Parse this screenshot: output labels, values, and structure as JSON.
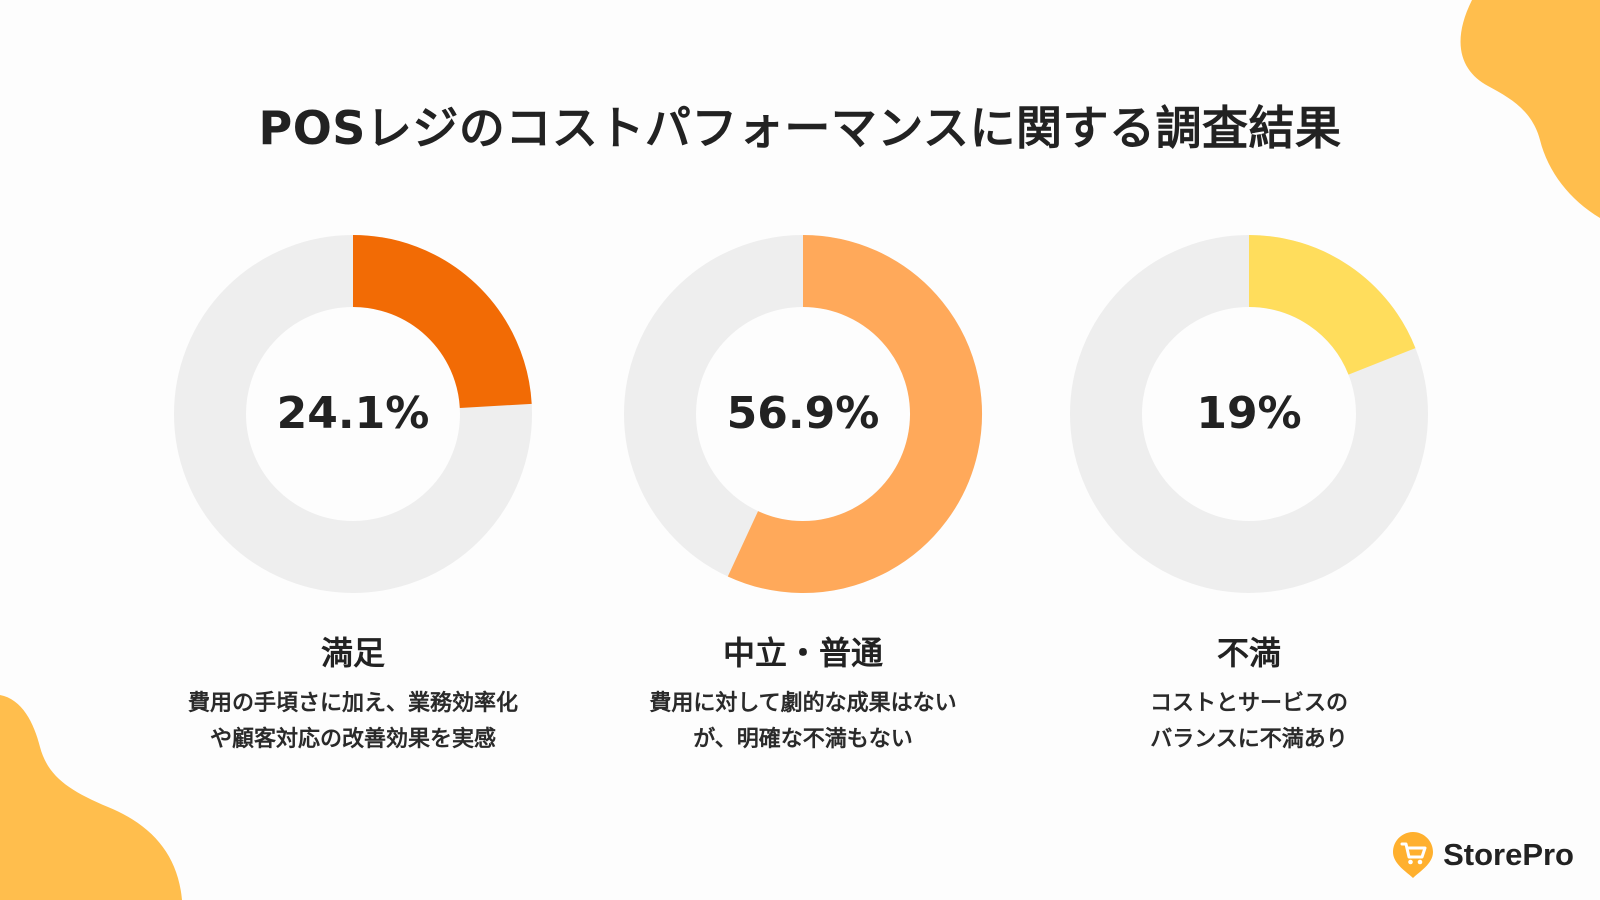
{
  "title": "POSレジのコストパフォーマンスに関する調査結果",
  "colors": {
    "track": "#eeeeee",
    "background": "#fdfdfd",
    "blob": "#ffbe4d",
    "logo": "#ffb02e"
  },
  "chart_data": [
    {
      "type": "pie",
      "value": 24.1,
      "value_label": "24.1%",
      "label": "満足",
      "description": [
        "費用の手頃さに加え、業務効率化",
        "や顧客対応の改善効果を実感"
      ],
      "color": "#f26b05"
    },
    {
      "type": "pie",
      "value": 56.9,
      "value_label": "56.9%",
      "label": "中立・普通",
      "description": [
        "費用に対して劇的な成果はない",
        "が、明確な不満もない"
      ],
      "color": "#ffa95a"
    },
    {
      "type": "pie",
      "value": 19,
      "value_label": "19%",
      "label": "不満",
      "description": [
        "コストとサービスの",
        "バランスに不満あり"
      ],
      "color": "#ffdd5c"
    }
  ],
  "logo": {
    "text": "StorePro",
    "icon": "cart-pin-icon"
  }
}
